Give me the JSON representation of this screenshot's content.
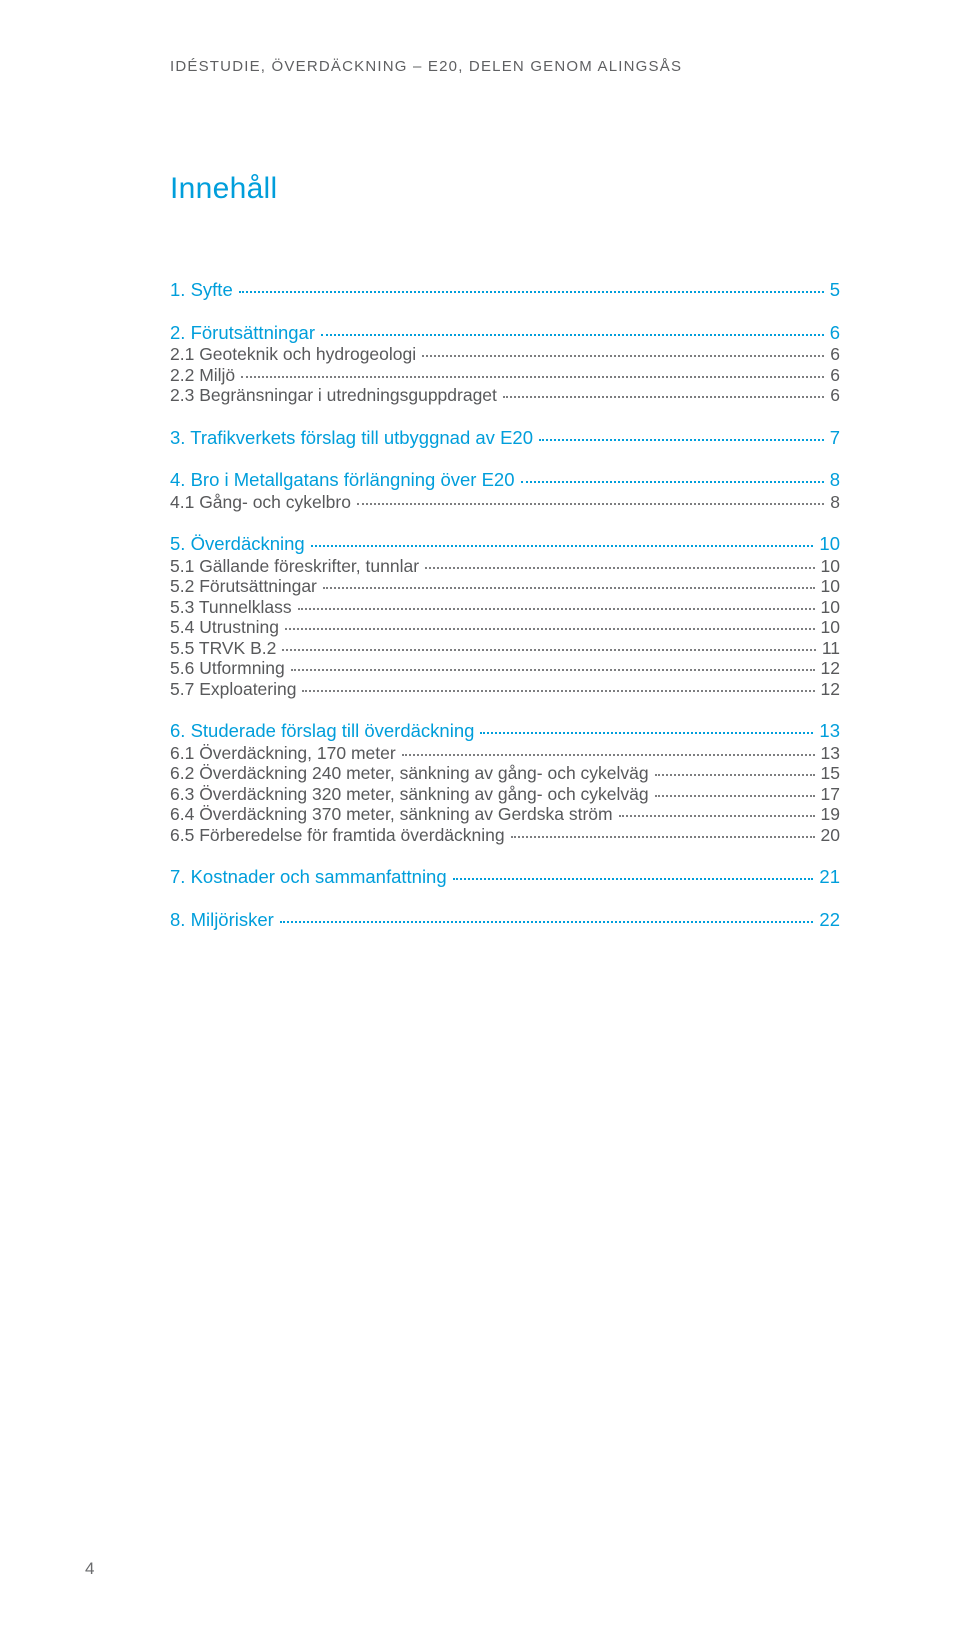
{
  "running_header": "IDÉSTUDIE, ÖVERDÄCKNING – E20, DELEN GENOM ALINGSÅS",
  "title": "Innehåll",
  "colors": {
    "accent": "#009edb",
    "body_text": "#58595b",
    "leader": "#7d7e80",
    "background": "#ffffff"
  },
  "typography": {
    "running_header_fontsize": 15,
    "title_fontsize": 30,
    "h1_fontsize": 18.5,
    "h2_fontsize": 17.5,
    "footer_fontsize": 17,
    "font_family": "Arial",
    "letter_spacing_header": 1.2
  },
  "toc": [
    {
      "level": 1,
      "label": "1. Syfte",
      "page": "5"
    },
    {
      "level": 1,
      "label": "2. Förutsättningar",
      "page": "6"
    },
    {
      "level": 2,
      "label": "2.1 Geoteknik och hydrogeologi",
      "page": "6"
    },
    {
      "level": 2,
      "label": "2.2 Miljö",
      "page": "6"
    },
    {
      "level": 2,
      "label": "2.3 Begränsningar i utredningsguppdraget",
      "page": "6"
    },
    {
      "level": 1,
      "label": "3. Trafikverkets förslag till utbyggnad av E20",
      "page": "7"
    },
    {
      "level": 1,
      "label": "4. Bro i Metallgatans förlängning över E20",
      "page": "8"
    },
    {
      "level": 2,
      "label": "4.1 Gång- och cykelbro",
      "page": "8"
    },
    {
      "level": 1,
      "label": "5. Överdäckning",
      "page": "10"
    },
    {
      "level": 2,
      "label": "5.1 Gällande föreskrifter, tunnlar",
      "page": "10"
    },
    {
      "level": 2,
      "label": "5.2 Förutsättningar",
      "page": "10"
    },
    {
      "level": 2,
      "label": "5.3 Tunnelklass",
      "page": "10"
    },
    {
      "level": 2,
      "label": "5.4 Utrustning",
      "page": "10"
    },
    {
      "level": 2,
      "label": "5.5 TRVK B.2",
      "page": "11"
    },
    {
      "level": 2,
      "label": "5.6 Utformning",
      "page": "12"
    },
    {
      "level": 2,
      "label": "5.7 Exploatering",
      "page": "12"
    },
    {
      "level": 1,
      "label": "6. Studerade förslag till överdäckning",
      "page": "13"
    },
    {
      "level": 2,
      "label": "6.1 Överdäckning, 170 meter",
      "page": "13"
    },
    {
      "level": 2,
      "label": "6.2 Överdäckning 240 meter, sänkning av gång- och cykelväg",
      "page": "15"
    },
    {
      "level": 2,
      "label": "6.3 Överdäckning 320 meter, sänkning av gång- och cykelväg",
      "page": "17"
    },
    {
      "level": 2,
      "label": "6.4 Överdäckning 370 meter, sänkning av Gerdska ström",
      "page": "19"
    },
    {
      "level": 2,
      "label": "6.5 Förberedelse för framtida överdäckning",
      "page": "20"
    },
    {
      "level": 1,
      "label": "7. Kostnader och sammanfattning",
      "page": "21"
    },
    {
      "level": 1,
      "label": "8. Miljörisker",
      "page": "22"
    }
  ],
  "footer_page_number": "4"
}
